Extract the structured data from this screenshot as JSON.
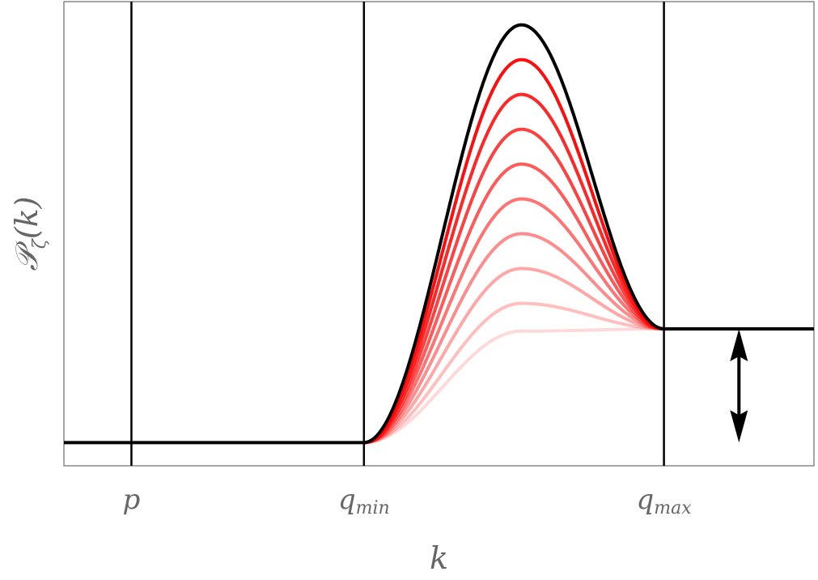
{
  "chart_data": {
    "type": "line",
    "xlabel": "k",
    "ylabel_main": "𝒫",
    "ylabel_sub": "ζ",
    "ylabel_arg": "(k)",
    "xticks": [
      {
        "x": 0.9,
        "main": "p",
        "sub": ""
      },
      {
        "x": 4.0,
        "main": "q",
        "sub": "min"
      },
      {
        "x": 8.0,
        "main": "q",
        "sub": "max"
      }
    ],
    "xlim": [
      0.0,
      10.0
    ],
    "ylim": [
      -0.1,
      1.9
    ],
    "ticks_at": [
      0.9,
      4.0,
      8.0
    ],
    "baseline_left": 0.0,
    "plateau_right": 0.49,
    "peak_k": 6.1,
    "outer_curve_peak": 1.8,
    "outer_curve_color": "#000000",
    "family_color": "#ff0000",
    "family_peaks": [
      1.65,
      1.5,
      1.35,
      1.2,
      1.05,
      0.9,
      0.75,
      0.6,
      0.48
    ],
    "family_opacities": [
      0.95,
      0.85,
      0.75,
      0.65,
      0.55,
      0.45,
      0.35,
      0.25,
      0.15
    ],
    "arrow": {
      "x": 9.0,
      "y_top": 0.49,
      "y_bottom": 0.0
    },
    "grid": false,
    "legend": "none"
  }
}
